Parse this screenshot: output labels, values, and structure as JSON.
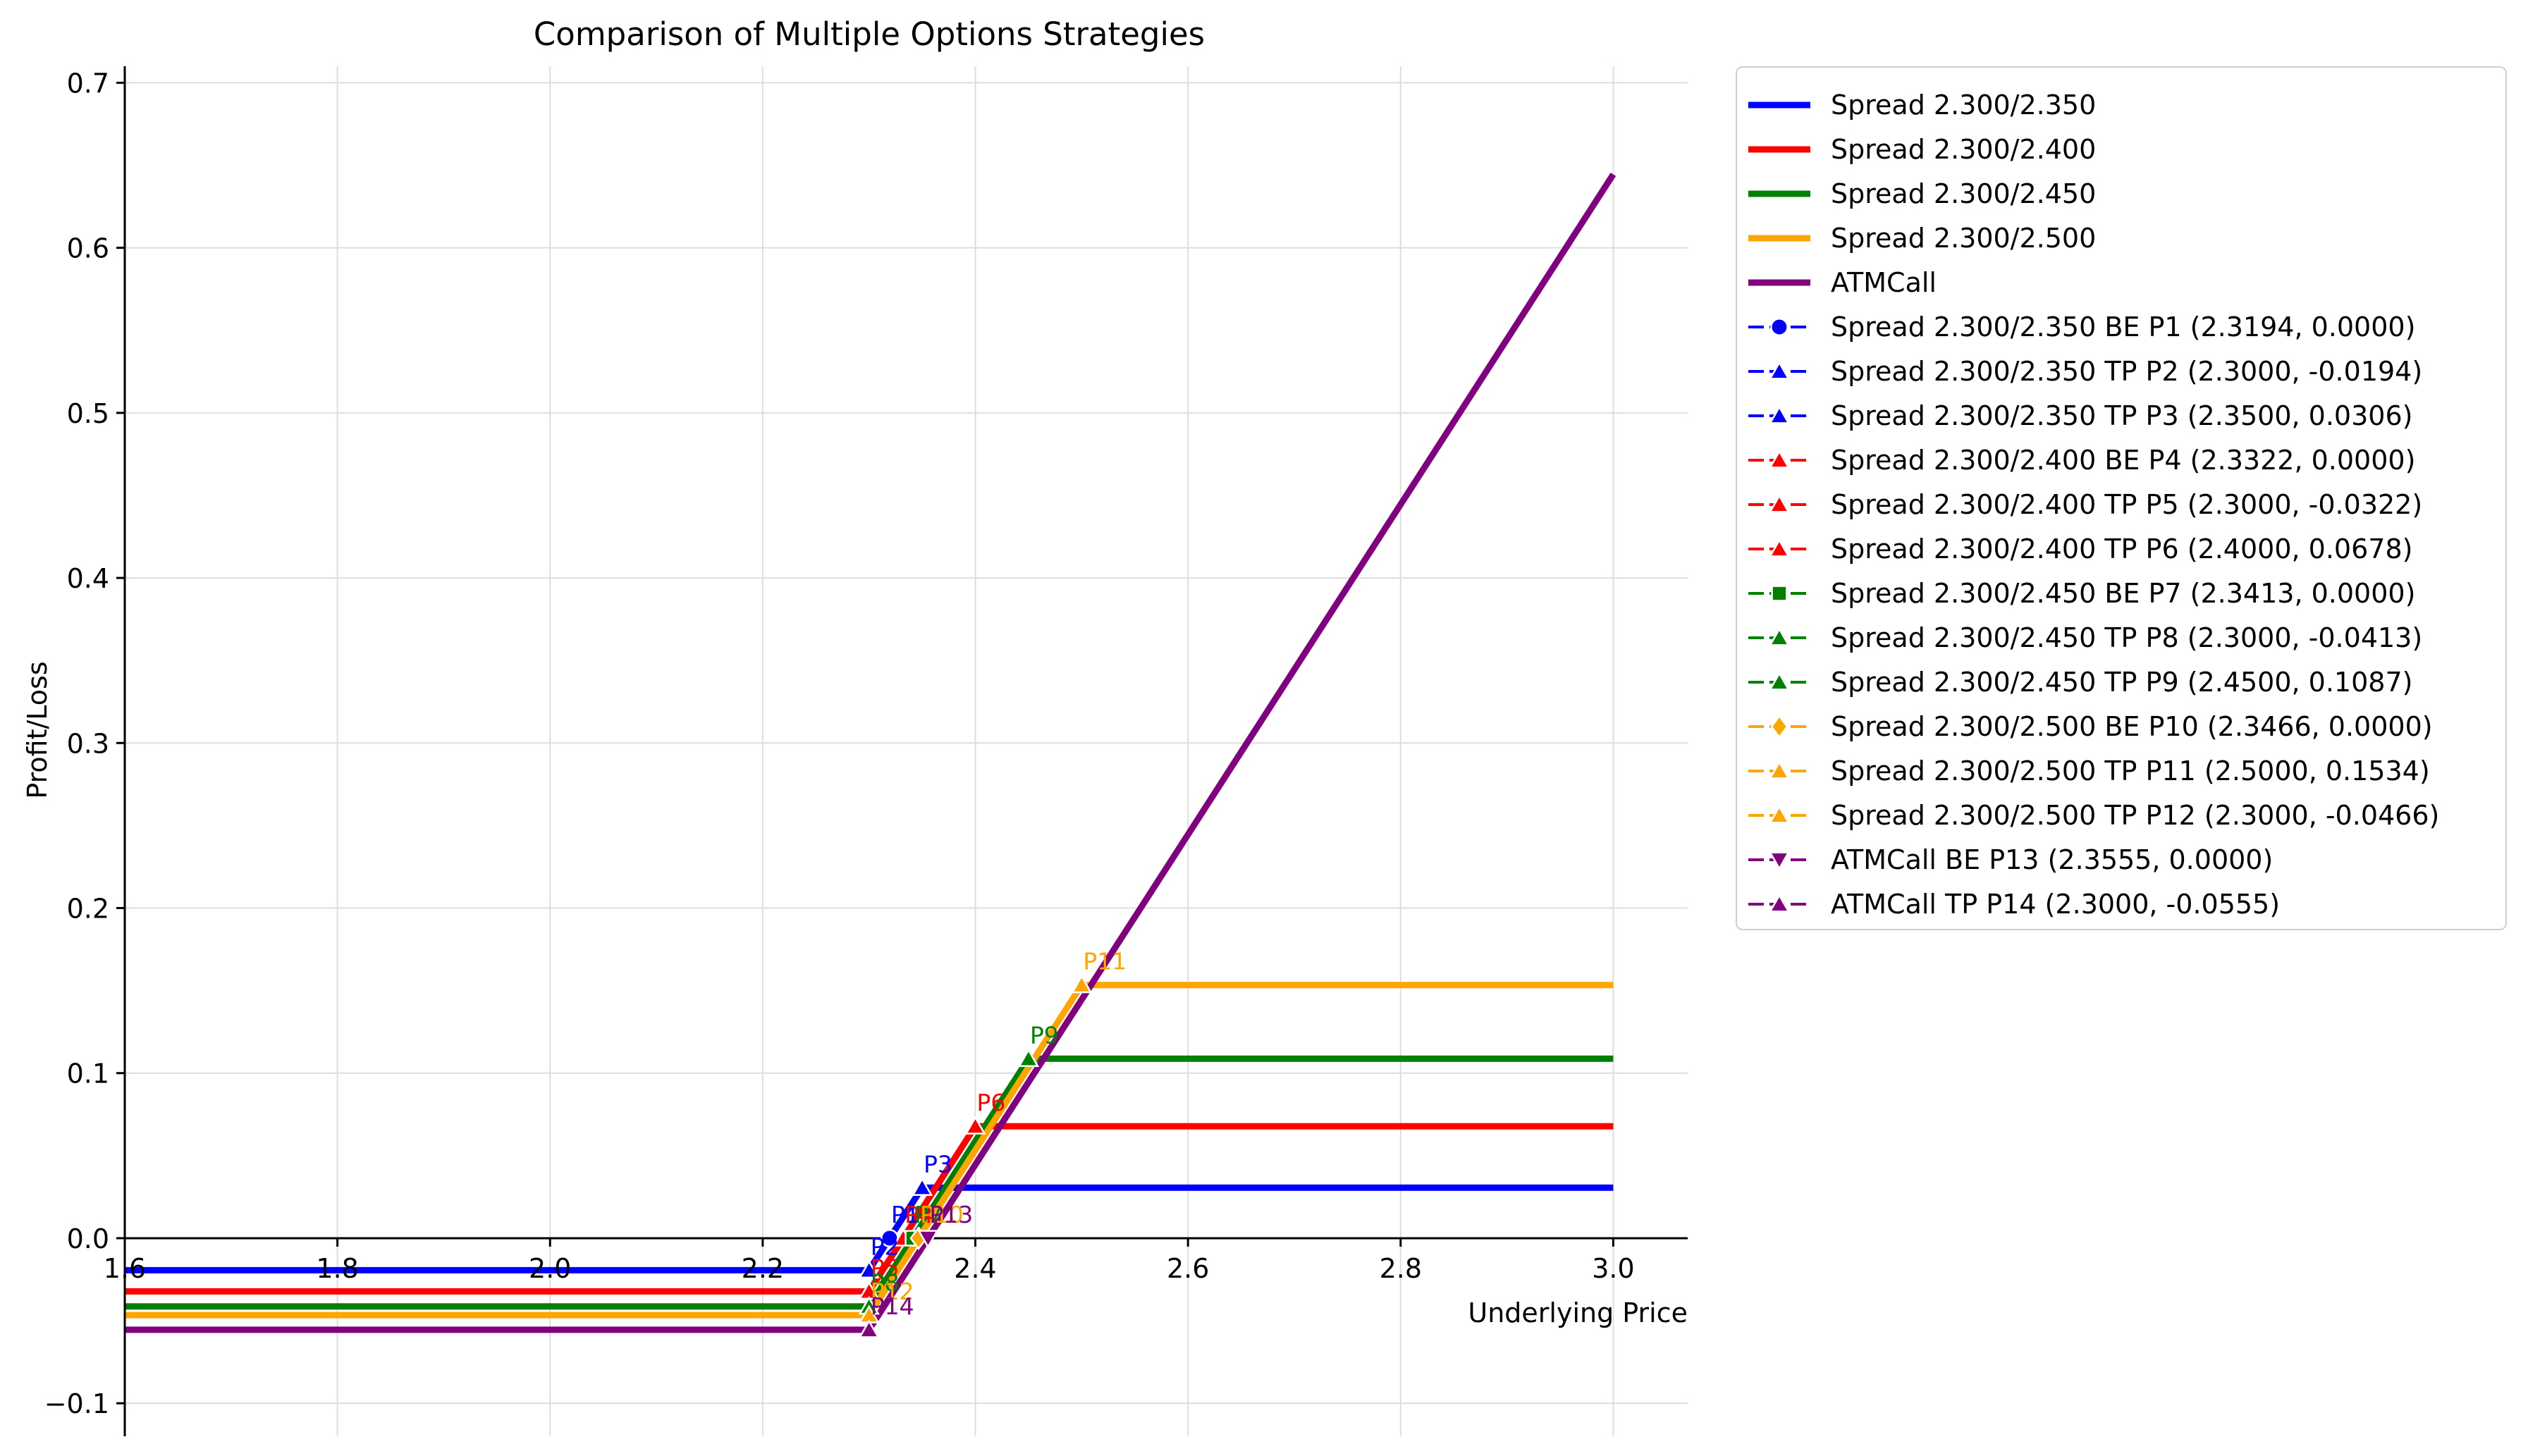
{
  "chart_data": {
    "type": "line",
    "title": "Comparison of Multiple Options Strategies",
    "xlabel": "Underlying Price",
    "ylabel": "Profit/Loss",
    "xlim": [
      1.6,
      3.07
    ],
    "ylim": [
      -0.12,
      0.71
    ],
    "xticks": [
      "1.6",
      "1.8",
      "2.0",
      "2.2",
      "2.4",
      "2.6",
      "2.8",
      "3.0"
    ],
    "xtick_values": [
      1.6,
      1.8,
      2.0,
      2.2,
      2.4,
      2.6,
      2.8,
      3.0
    ],
    "yticks": [
      "−0.1",
      "0.0",
      "0.1",
      "0.2",
      "0.3",
      "0.4",
      "0.5",
      "0.6",
      "0.7"
    ],
    "ytick_values": [
      -0.1,
      0.0,
      0.1,
      0.2,
      0.3,
      0.4,
      0.5,
      0.6,
      0.7
    ],
    "grid": true,
    "legend_position": "outside right",
    "series": [
      {
        "name": "Spread 2.300/2.350",
        "color": "#0000ff",
        "x": [
          1.6,
          2.3,
          2.35,
          3.0
        ],
        "y": [
          -0.0194,
          -0.0194,
          0.0306,
          0.0306
        ]
      },
      {
        "name": "Spread 2.300/2.400",
        "color": "#ff0000",
        "x": [
          1.6,
          2.3,
          2.4,
          3.0
        ],
        "y": [
          -0.0322,
          -0.0322,
          0.0678,
          0.0678
        ]
      },
      {
        "name": "Spread 2.300/2.450",
        "color": "#008000",
        "x": [
          1.6,
          2.3,
          2.45,
          3.0
        ],
        "y": [
          -0.0413,
          -0.0413,
          0.1087,
          0.1087
        ]
      },
      {
        "name": "Spread 2.300/2.500",
        "color": "#ffa500",
        "x": [
          1.6,
          2.3,
          2.5,
          3.0
        ],
        "y": [
          -0.0466,
          -0.0466,
          0.1534,
          0.1534
        ]
      },
      {
        "name": "ATMCall",
        "color": "#800080",
        "x": [
          1.6,
          2.3,
          3.0
        ],
        "y": [
          -0.0555,
          -0.0555,
          0.6445
        ]
      }
    ],
    "points": [
      {
        "label": "P1",
        "legend": "Spread 2.300/2.350 BE P1 (2.3194, 0.0000)",
        "x": 2.3194,
        "y": 0.0,
        "color": "#0000ff",
        "marker": "circle"
      },
      {
        "label": "P2",
        "legend": "Spread 2.300/2.350 TP P2 (2.3000, -0.0194)",
        "x": 2.3,
        "y": -0.0194,
        "color": "#0000ff",
        "marker": "triangle-up"
      },
      {
        "label": "P3",
        "legend": "Spread 2.300/2.350 TP P3 (2.3500, 0.0306)",
        "x": 2.35,
        "y": 0.0306,
        "color": "#0000ff",
        "marker": "triangle-up"
      },
      {
        "label": "P4",
        "legend": "Spread 2.300/2.400 BE P4 (2.3322, 0.0000)",
        "x": 2.3322,
        "y": 0.0,
        "color": "#ff0000",
        "marker": "triangle-up"
      },
      {
        "label": "P5",
        "legend": "Spread 2.300/2.400 TP P5 (2.3000, -0.0322)",
        "x": 2.3,
        "y": -0.0322,
        "color": "#ff0000",
        "marker": "triangle-up"
      },
      {
        "label": "P6",
        "legend": "Spread 2.300/2.400 TP P6 (2.4000, 0.0678)",
        "x": 2.4,
        "y": 0.0678,
        "color": "#ff0000",
        "marker": "triangle-up"
      },
      {
        "label": "P7",
        "legend": "Spread 2.300/2.450 BE P7 (2.3413, 0.0000)",
        "x": 2.3413,
        "y": 0.0,
        "color": "#008000",
        "marker": "square"
      },
      {
        "label": "P8",
        "legend": "Spread 2.300/2.450 TP P8 (2.3000, -0.0413)",
        "x": 2.3,
        "y": -0.0413,
        "color": "#008000",
        "marker": "triangle-up"
      },
      {
        "label": "P9",
        "legend": "Spread 2.300/2.450 TP P9 (2.4500, 0.1087)",
        "x": 2.45,
        "y": 0.1087,
        "color": "#008000",
        "marker": "triangle-up"
      },
      {
        "label": "P10",
        "legend": "Spread 2.300/2.500 BE P10 (2.3466, 0.0000)",
        "x": 2.3466,
        "y": 0.0,
        "color": "#ffa500",
        "marker": "diamond"
      },
      {
        "label": "P11",
        "legend": "Spread 2.300/2.500 TP P11 (2.5000, 0.1534)",
        "x": 2.5,
        "y": 0.1534,
        "color": "#ffa500",
        "marker": "triangle-up"
      },
      {
        "label": "P12",
        "legend": "Spread 2.300/2.500 TP P12 (2.3000, -0.0466)",
        "x": 2.3,
        "y": -0.0466,
        "color": "#ffa500",
        "marker": "triangle-up"
      },
      {
        "label": "P13",
        "legend": "ATMCall BE P13 (2.3555, 0.0000)",
        "x": 2.3555,
        "y": 0.0,
        "color": "#800080",
        "marker": "triangle-down"
      },
      {
        "label": "P14",
        "legend": "ATMCall TP P14 (2.3000, -0.0555)",
        "x": 2.3,
        "y": -0.0555,
        "color": "#800080",
        "marker": "triangle-up"
      }
    ]
  }
}
